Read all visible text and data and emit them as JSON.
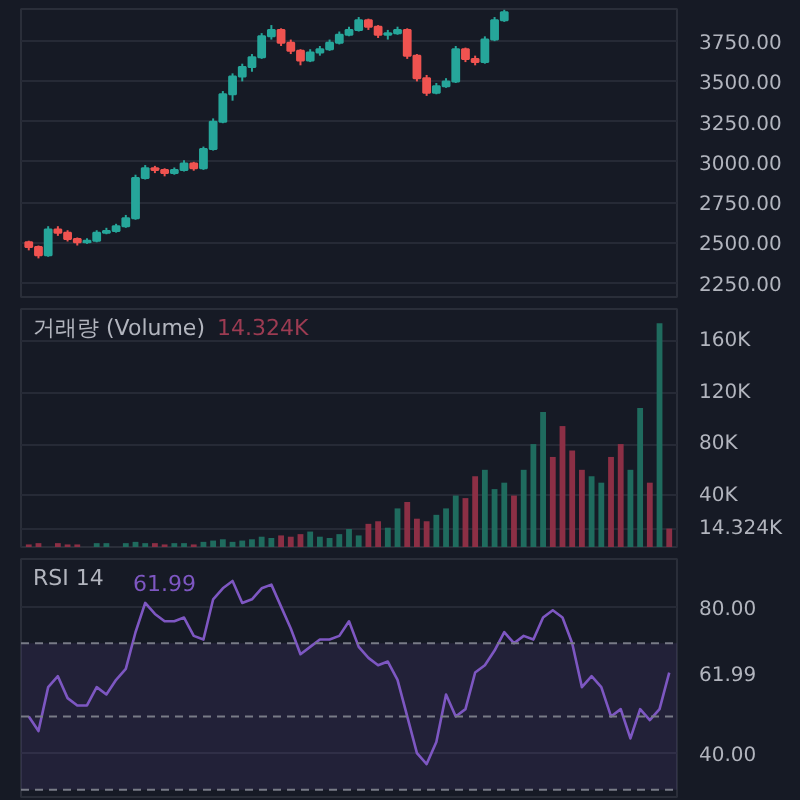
{
  "chart_data": [
    {
      "type": "candlestick",
      "categories": [
        null,
        null,
        null,
        null,
        null,
        null,
        null,
        null,
        null,
        null,
        null,
        null,
        null,
        null,
        null,
        null,
        null,
        null,
        null,
        null,
        null,
        null,
        null,
        null,
        null,
        null,
        null,
        null,
        null,
        null,
        null,
        null,
        null,
        null,
        null,
        null,
        null,
        null,
        null,
        null,
        null,
        null,
        null,
        null,
        null,
        null,
        null,
        null,
        null,
        null,
        null,
        null,
        null,
        null,
        null,
        null,
        null,
        null,
        null,
        null,
        null,
        null,
        null,
        null,
        null,
        null,
        null
      ],
      "ohlc": [
        [
          2500,
          2510,
          2450,
          2470
        ],
        [
          2470,
          2480,
          2400,
          2420
        ],
        [
          2420,
          2600,
          2410,
          2580
        ],
        [
          2580,
          2600,
          2540,
          2560
        ],
        [
          2560,
          2575,
          2505,
          2520
        ],
        [
          2520,
          2530,
          2480,
          2500
        ],
        [
          2500,
          2525,
          2490,
          2510
        ],
        [
          2510,
          2575,
          2500,
          2560
        ],
        [
          2560,
          2590,
          2550,
          2570
        ],
        [
          2570,
          2615,
          2560,
          2600
        ],
        [
          2600,
          2670,
          2590,
          2650
        ],
        [
          2650,
          2920,
          2640,
          2900
        ],
        [
          2900,
          2980,
          2890,
          2960
        ],
        [
          2960,
          2975,
          2930,
          2950
        ],
        [
          2950,
          2960,
          2910,
          2930
        ],
        [
          2930,
          2965,
          2920,
          2950
        ],
        [
          2950,
          3010,
          2940,
          2990
        ],
        [
          2990,
          3000,
          2945,
          2960
        ],
        [
          2960,
          3095,
          2950,
          3080
        ],
        [
          3080,
          3270,
          3070,
          3250
        ],
        [
          3250,
          3440,
          3240,
          3420
        ],
        [
          3420,
          3550,
          3380,
          3530
        ],
        [
          3530,
          3610,
          3500,
          3590
        ],
        [
          3590,
          3670,
          3560,
          3650
        ],
        [
          3650,
          3800,
          3640,
          3780
        ],
        [
          3780,
          3850,
          3760,
          3820
        ],
        [
          3820,
          3830,
          3720,
          3740
        ],
        [
          3740,
          3760,
          3670,
          3690
        ],
        [
          3690,
          3700,
          3600,
          3630
        ],
        [
          3630,
          3700,
          3620,
          3680
        ],
        [
          3680,
          3720,
          3660,
          3700
        ],
        [
          3700,
          3760,
          3690,
          3740
        ],
        [
          3740,
          3810,
          3730,
          3790
        ],
        [
          3790,
          3840,
          3780,
          3820
        ],
        [
          3820,
          3900,
          3810,
          3880
        ],
        [
          3880,
          3890,
          3820,
          3840
        ],
        [
          3840,
          3850,
          3770,
          3790
        ],
        [
          3790,
          3820,
          3760,
          3800
        ],
        [
          3800,
          3840,
          3790,
          3820
        ],
        [
          3820,
          3830,
          3640,
          3660
        ],
        [
          3660,
          3670,
          3500,
          3520
        ],
        [
          3520,
          3540,
          3410,
          3430
        ],
        [
          3430,
          3490,
          3420,
          3470
        ],
        [
          3470,
          3520,
          3460,
          3500
        ],
        [
          3500,
          3720,
          3490,
          3700
        ],
        [
          3700,
          3710,
          3620,
          3640
        ],
        [
          3640,
          3660,
          3600,
          3620
        ],
        [
          3620,
          3780,
          3610,
          3760
        ],
        [
          3760,
          3900,
          3750,
          3880
        ],
        [
          3880,
          3945,
          3870,
          3930
        ],
        null,
        null,
        null,
        null,
        null,
        null,
        null,
        null,
        null,
        null,
        null,
        null,
        null,
        null,
        null,
        null,
        null
      ],
      "colors": [
        "#ef5350",
        "#ef5350",
        "#26a69a",
        "#ef5350",
        "#ef5350",
        "#ef5350",
        "#26a69a",
        "#26a69a",
        "#26a69a",
        "#26a69a",
        "#26a69a",
        "#26a69a",
        "#26a69a",
        "#ef5350",
        "#ef5350",
        "#26a69a",
        "#26a69a",
        "#ef5350",
        "#26a69a",
        "#26a69a",
        "#26a69a",
        "#26a69a",
        "#26a69a",
        "#26a69a",
        "#26a69a",
        "#26a69a",
        "#ef5350",
        "#ef5350",
        "#ef5350",
        "#26a69a",
        "#26a69a",
        "#26a69a",
        "#26a69a",
        "#26a69a",
        "#26a69a",
        "#ef5350",
        "#ef5350",
        "#26a69a",
        "#26a69a",
        "#ef5350",
        "#ef5350",
        "#ef5350",
        "#26a69a",
        "#26a69a",
        "#26a69a",
        "#ef5350",
        "#ef5350",
        "#26a69a",
        "#26a69a",
        "#26a69a",
        null,
        null,
        null,
        null,
        null,
        null,
        null,
        null,
        null,
        null,
        null,
        null,
        null,
        null,
        null,
        null,
        null
      ],
      "ylim": [
        2160,
        3950
      ],
      "yticks": [
        {
          "value": 2250,
          "label": "2250.00"
        },
        {
          "value": 2500,
          "label": "2500.00"
        },
        {
          "value": 2750,
          "label": "2750.00"
        },
        {
          "value": 3000,
          "label": "3000.00"
        },
        {
          "value": 3250,
          "label": "3250.00"
        },
        {
          "value": 3500,
          "label": "3500.00"
        },
        {
          "value": 3750,
          "label": "3750.00"
        }
      ],
      "grid": "y",
      "tick_labels": "y"
    },
    {
      "type": "bar",
      "title": "거래량 (Volume)",
      "annotations": [
        "14.324K"
      ],
      "categories": [
        null,
        null,
        null,
        null,
        null,
        null,
        null,
        null,
        null,
        null,
        null,
        null,
        null,
        null,
        null,
        null,
        null,
        null,
        null,
        null,
        null,
        null,
        null,
        null,
        null,
        null,
        null,
        null,
        null,
        null,
        null,
        null,
        null,
        null,
        null,
        null,
        null,
        null,
        null,
        null,
        null,
        null,
        null,
        null,
        null,
        null,
        null,
        null,
        null,
        null,
        null,
        null,
        null,
        null,
        null,
        null,
        null,
        null,
        null,
        null,
        null,
        null,
        null,
        null,
        null,
        null,
        null
      ],
      "values": [
        2000,
        3000,
        null,
        3000,
        2000,
        2000,
        null,
        3000,
        3000,
        null,
        3000,
        4000,
        3000,
        3000,
        2000,
        3000,
        3000,
        2000,
        4000,
        5000,
        6000,
        4000,
        5000,
        6000,
        8000,
        7000,
        9000,
        8000,
        10000,
        12000,
        8000,
        7000,
        10000,
        14000,
        9000,
        18000,
        20000,
        15000,
        30000,
        35000,
        22000,
        20000,
        25000,
        30000,
        40000,
        38000,
        55000,
        60000,
        45000,
        50000,
        40000,
        60000,
        80000,
        105000,
        70000,
        94000,
        75000,
        60000,
        55000,
        50000,
        70000,
        80000,
        60000,
        108000,
        50000,
        174000,
        14324
      ],
      "colors": [
        "#8c2f45",
        "#8c2f45",
        "#1f6b5e",
        "#8c2f45",
        "#8c2f45",
        "#8c2f45",
        "#1f6b5e",
        "#1f6b5e",
        "#1f6b5e",
        "#1f6b5e",
        "#1f6b5e",
        "#1f6b5e",
        "#1f6b5e",
        "#8c2f45",
        "#8c2f45",
        "#1f6b5e",
        "#1f6b5e",
        "#8c2f45",
        "#1f6b5e",
        "#1f6b5e",
        "#1f6b5e",
        "#1f6b5e",
        "#1f6b5e",
        "#1f6b5e",
        "#1f6b5e",
        "#1f6b5e",
        "#8c2f45",
        "#8c2f45",
        "#8c2f45",
        "#1f6b5e",
        "#1f6b5e",
        "#1f6b5e",
        "#1f6b5e",
        "#1f6b5e",
        "#1f6b5e",
        "#8c2f45",
        "#8c2f45",
        "#1f6b5e",
        "#1f6b5e",
        "#8c2f45",
        "#8c2f45",
        "#8c2f45",
        "#1f6b5e",
        "#1f6b5e",
        "#1f6b5e",
        "#8c2f45",
        "#8c2f45",
        "#1f6b5e",
        "#1f6b5e",
        "#1f6b5e",
        "#8c2f45",
        "#1f6b5e",
        "#1f6b5e",
        "#1f6b5e",
        "#8c2f45",
        "#8c2f45",
        "#8c2f45",
        "#8c2f45",
        "#1f6b5e",
        "#1f6b5e",
        "#8c2f45",
        "#8c2f45",
        "#1f6b5e",
        "#1f6b5e",
        "#8c2f45",
        "#1f6b5e",
        "#8c2f45"
      ],
      "ylim": [
        0,
        185000
      ],
      "yticks": [
        {
          "value": 14324,
          "label": "14.324K"
        },
        {
          "value": 40000,
          "label": "40K"
        },
        {
          "value": 80000,
          "label": "80K"
        },
        {
          "value": 120000,
          "label": "120K"
        },
        {
          "value": 160000,
          "label": "160K"
        }
      ],
      "grid": "y",
      "tick_labels": "y"
    },
    {
      "type": "line",
      "title": "RSI 14",
      "annotations": [
        "61.99"
      ],
      "categories": [
        null,
        null,
        null,
        null,
        null,
        null,
        null,
        null,
        null,
        null,
        null,
        null,
        null,
        null,
        null,
        null,
        null,
        null,
        null,
        null,
        null,
        null,
        null,
        null,
        null,
        null,
        null,
        null,
        null,
        null,
        null,
        null,
        null,
        null,
        null,
        null,
        null,
        null,
        null,
        null,
        null,
        null,
        null,
        null,
        null,
        null,
        null,
        null,
        null,
        null,
        null,
        null,
        null,
        null,
        null,
        null,
        null,
        null,
        null,
        null,
        null,
        null,
        null,
        null,
        null,
        null,
        null
      ],
      "series": [
        {
          "color": "#7e57c2",
          "values": [
            50,
            46,
            58,
            61,
            55,
            53,
            53,
            58,
            56,
            60,
            63,
            73,
            81,
            78,
            76,
            76,
            77,
            72,
            71,
            82,
            85,
            87,
            81,
            82,
            85,
            86,
            80,
            74,
            67,
            69,
            71,
            71,
            72,
            76,
            69,
            66,
            64,
            65,
            60,
            50,
            40,
            37,
            43,
            56,
            50,
            52,
            62,
            64,
            68,
            73,
            70,
            72,
            71,
            77,
            79,
            77,
            70,
            58,
            61,
            58,
            50,
            52,
            44,
            52,
            49,
            52,
            61.99
          ],
          "value_labels": [
            null,
            null,
            null,
            null,
            null,
            null,
            null,
            null,
            null,
            null,
            null,
            null,
            null,
            null,
            null,
            null,
            null,
            null,
            null,
            null,
            null,
            null,
            null,
            null,
            null,
            null,
            null,
            null,
            null,
            null,
            null,
            null,
            null,
            null,
            null,
            null,
            null,
            null,
            null,
            null,
            null,
            null,
            null,
            null,
            null,
            null,
            null,
            null,
            null,
            null,
            null,
            null,
            null,
            null,
            null,
            null,
            null,
            null,
            null,
            null,
            null,
            null,
            null,
            null,
            null,
            null,
            "61.99"
          ]
        }
      ],
      "ylim": [
        28,
        93
      ],
      "yticks": [
        {
          "value": 40,
          "label": "40.00"
        },
        {
          "value": 80,
          "label": "80.00"
        }
      ],
      "ref_lines": [
        {
          "axis": "y",
          "value": 70,
          "color": "#787b86",
          "line_style": "dashed"
        },
        {
          "axis": "y",
          "value": 50,
          "color": "#787b86",
          "line_style": "dashed"
        },
        {
          "axis": "y",
          "value": 30,
          "color": "#787b86",
          "line_style": "dashed"
        }
      ],
      "bands": [
        {
          "axis": "y",
          "from": 30,
          "to": 70,
          "color": "#7e57c2"
        }
      ],
      "grid": "y",
      "tick_labels": "y"
    }
  ]
}
